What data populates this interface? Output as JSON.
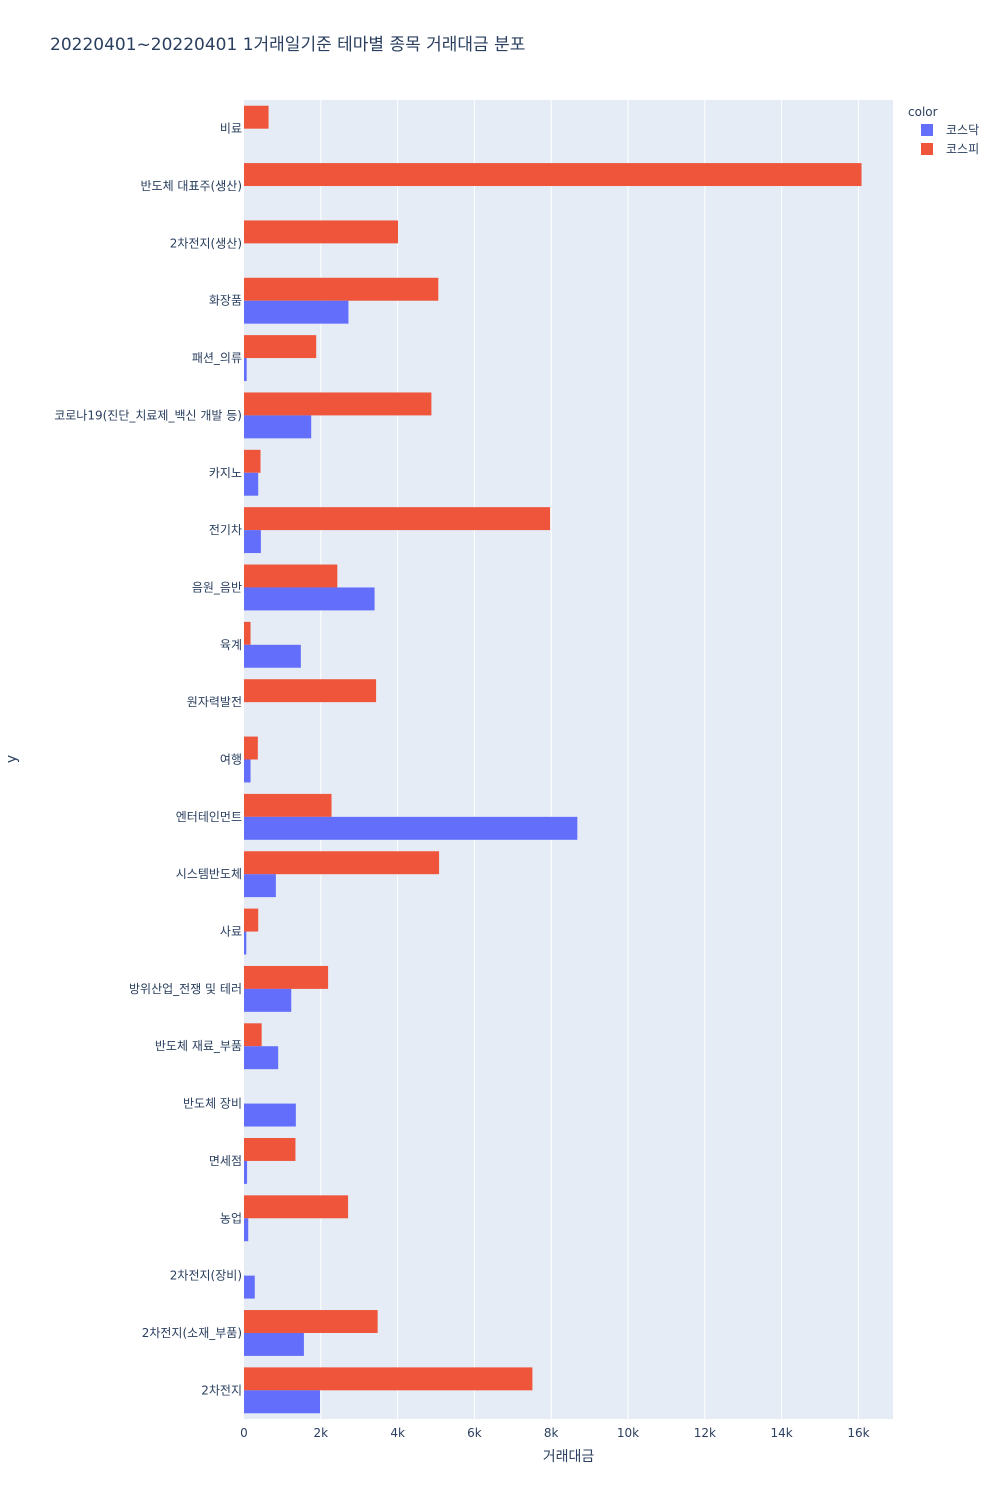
{
  "chart_data": {
    "type": "bar",
    "orientation": "horizontal",
    "barmode": "group",
    "title": "20220401~20220401 1거래일기준 테마별 종목 거래대금 분포",
    "xlabel": "거래대금",
    "ylabel": "y",
    "xlim": [
      0,
      16900
    ],
    "x_ticks": [
      0,
      2000,
      4000,
      6000,
      8000,
      10000,
      12000,
      14000,
      16000
    ],
    "x_tick_labels": [
      "0",
      "2k",
      "4k",
      "6k",
      "8k",
      "10k",
      "12k",
      "14k",
      "16k"
    ],
    "grid": true,
    "legend": {
      "title": "color",
      "position": "top-right"
    },
    "categories": [
      "비료",
      "반도체 대표주(생산)",
      "2차전지(생산)",
      "화장품",
      "패션_의류",
      "코로나19(진단_치료제_백신 개발 등)",
      "카지노",
      "전기차",
      "음원_음반",
      "육계",
      "원자력발전",
      "여행",
      "엔터테인먼트",
      "시스템반도체",
      "사료",
      "방위산업_전쟁 및 테러",
      "반도체 재료_부품",
      "반도체 장비",
      "면세점",
      "농업",
      "2차전지(장비)",
      "2차전지(소재_부품)",
      "2차전지"
    ],
    "series": [
      {
        "name": "코스닥",
        "color": "#636efa",
        "values": [
          0,
          0,
          0,
          2720,
          70,
          1750,
          370,
          440,
          3400,
          1480,
          0,
          170,
          8680,
          830,
          60,
          1230,
          890,
          1350,
          80,
          110,
          280,
          1560,
          1980
        ]
      },
      {
        "name": "코스피",
        "color": "#ef553b",
        "values": [
          640,
          16080,
          4010,
          5060,
          1880,
          4880,
          430,
          7970,
          2430,
          170,
          3440,
          360,
          2280,
          5080,
          370,
          2190,
          460,
          0,
          1340,
          2710,
          0,
          3480,
          7510
        ]
      }
    ]
  }
}
